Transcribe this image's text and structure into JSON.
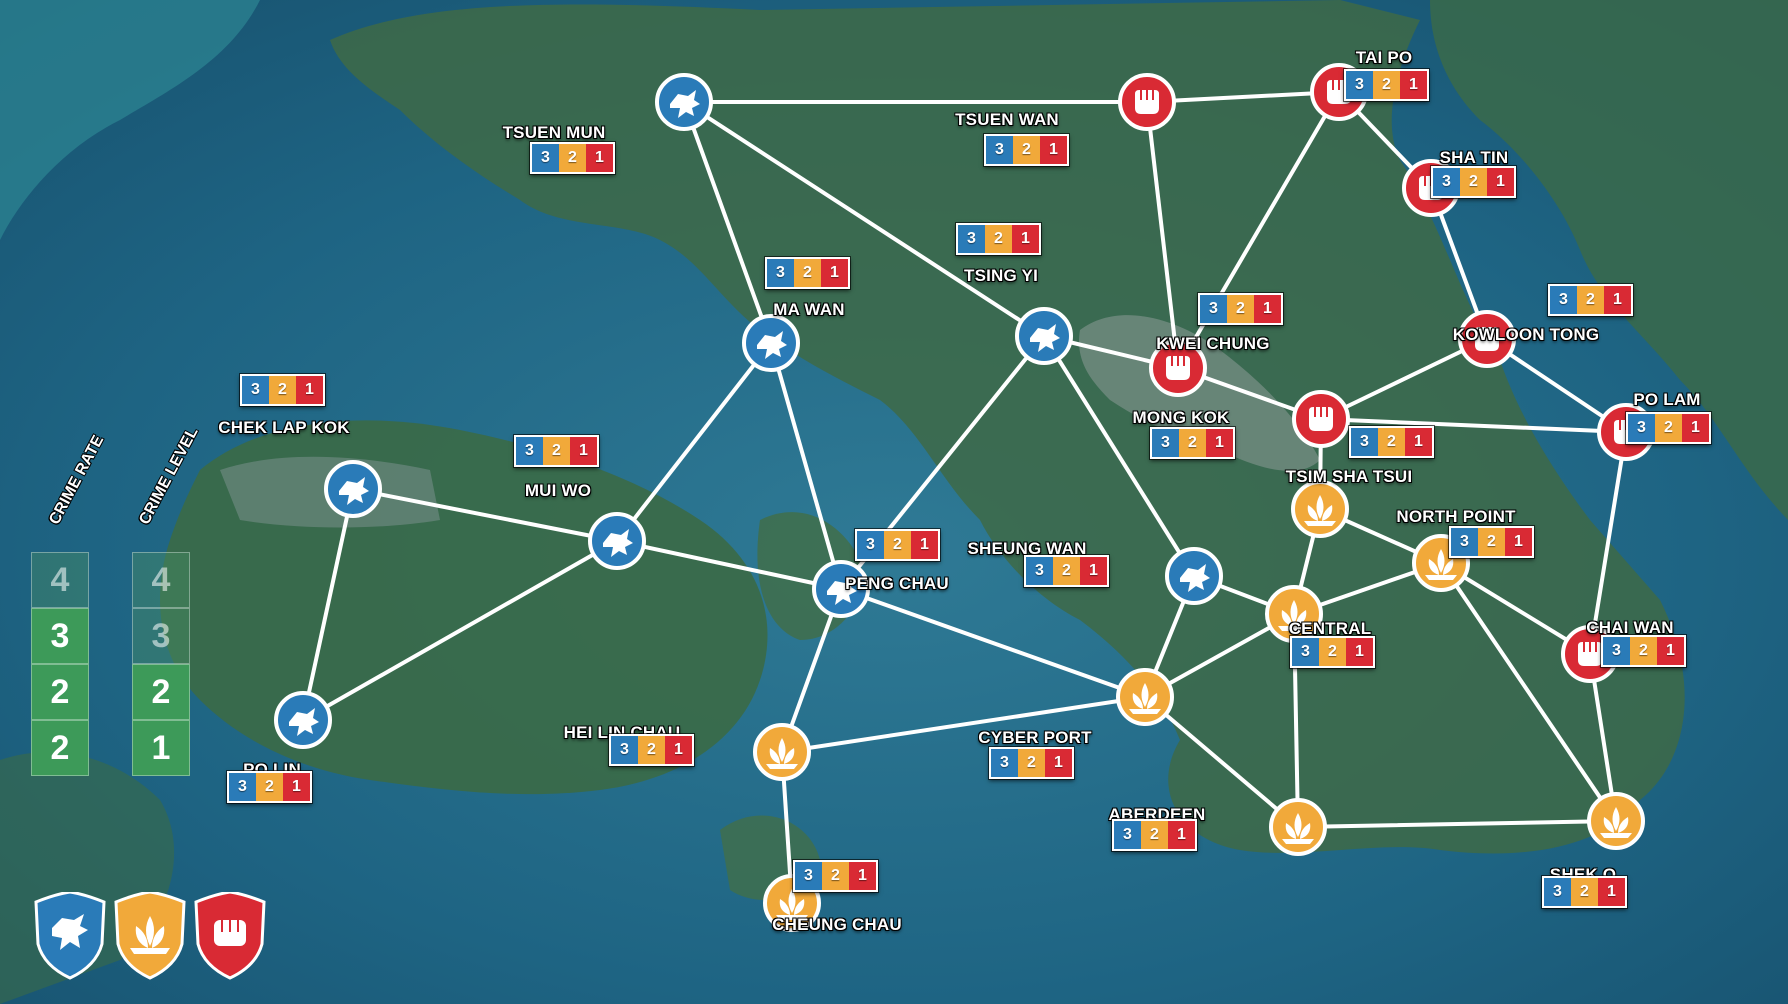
{
  "colors": {
    "dragon": "#2a7bb8",
    "lotus": "#f1a93a",
    "fist": "#d92a34",
    "road": "#ffffff",
    "track": "#3d9a59"
  },
  "tracks": {
    "crime_rate": {
      "label": "CRIME RATE",
      "values": [
        "4",
        "3",
        "2",
        "2"
      ],
      "active": [
        false,
        true,
        true,
        true
      ]
    },
    "crime_level": {
      "label": "CRIME LEVEL",
      "values": [
        "4",
        "3",
        "2",
        "1"
      ],
      "active": [
        false,
        false,
        true,
        true
      ]
    }
  },
  "districts": [
    {
      "id": "tsuen_mun",
      "name": "TSUEN MUN",
      "faction": "dragon",
      "score": [
        "3",
        "2",
        "1"
      ]
    },
    {
      "id": "tsuen_wan",
      "name": "TSUEN WAN",
      "faction": "fist",
      "score": [
        "3",
        "2",
        "1"
      ]
    },
    {
      "id": "tai_po",
      "name": "TAI PO",
      "faction": "fist",
      "score": [
        "3",
        "2",
        "1"
      ]
    },
    {
      "id": "sha_tin",
      "name": "SHA TIN",
      "faction": "fist",
      "score": [
        "3",
        "2",
        "1"
      ]
    },
    {
      "id": "tsing_yi",
      "name": "TSING YI",
      "faction": "dragon",
      "score": [
        "3",
        "2",
        "1"
      ]
    },
    {
      "id": "ma_wan",
      "name": "MA WAN",
      "faction": "dragon",
      "score": [
        "3",
        "2",
        "1"
      ]
    },
    {
      "id": "kwei_chung",
      "name": "KWEI CHUNG",
      "faction": "fist",
      "score": [
        "3",
        "2",
        "1"
      ]
    },
    {
      "id": "kowloon_tong",
      "name": "KOWLOON TONG",
      "faction": "fist",
      "score": [
        "3",
        "2",
        "1"
      ]
    },
    {
      "id": "chek_lap_kok",
      "name": "CHEK LAP KOK",
      "faction": "dragon",
      "score": [
        "3",
        "2",
        "1"
      ]
    },
    {
      "id": "mui_wo",
      "name": "MUI WO",
      "faction": "dragon",
      "score": [
        "3",
        "2",
        "1"
      ]
    },
    {
      "id": "mong_kok",
      "name": "MONG KOK",
      "faction": "fist",
      "score": [
        "3",
        "2",
        "1"
      ]
    },
    {
      "id": "po_lam",
      "name": "PO LAM",
      "faction": "fist",
      "score": [
        "3",
        "2",
        "1"
      ]
    },
    {
      "id": "tsim_sha_tsui",
      "name": "TSIM SHA TSUI",
      "faction": "lotus",
      "score": [
        "3",
        "2",
        "1"
      ]
    },
    {
      "id": "north_point",
      "name": "NORTH POINT",
      "faction": "lotus",
      "score": [
        "3",
        "2",
        "1"
      ]
    },
    {
      "id": "sheung_wan",
      "name": "SHEUNG WAN",
      "faction": "dragon",
      "score": [
        "3",
        "2",
        "1"
      ]
    },
    {
      "id": "peng_chau",
      "name": "PENG CHAU",
      "faction": "dragon",
      "score": [
        "3",
        "2",
        "1"
      ]
    },
    {
      "id": "central",
      "name": "CENTRAL",
      "faction": "lotus",
      "score": [
        "3",
        "2",
        "1"
      ]
    },
    {
      "id": "chai_wan",
      "name": "CHAI WAN",
      "faction": "fist",
      "score": [
        "3",
        "2",
        "1"
      ]
    },
    {
      "id": "po_lin",
      "name": "PO LIN",
      "faction": "dragon",
      "score": [
        "3",
        "2",
        "1"
      ]
    },
    {
      "id": "hei_lin_chau",
      "name": "HEI LIN CHAU",
      "faction": "lotus",
      "score": [
        "3",
        "2",
        "1"
      ]
    },
    {
      "id": "cyber_port",
      "name": "CYBER PORT",
      "faction": "lotus",
      "score": [
        "3",
        "2",
        "1"
      ]
    },
    {
      "id": "aberdeen",
      "name": "ABERDEEN",
      "faction": "lotus",
      "score": [
        "3",
        "2",
        "1"
      ]
    },
    {
      "id": "shek_o",
      "name": "SHEK O",
      "faction": "lotus",
      "score": [
        "3",
        "2",
        "1"
      ]
    },
    {
      "id": "cheung_chau",
      "name": "CHEUNG CHAU",
      "faction": "lotus",
      "score": [
        "3",
        "2",
        "1"
      ]
    }
  ],
  "connections": [
    [
      "tsuen_mun",
      "tsuen_wan"
    ],
    [
      "tsuen_wan",
      "tai_po"
    ],
    [
      "tsuen_mun",
      "ma_wan"
    ],
    [
      "tsuen_mun",
      "tsing_yi"
    ],
    [
      "tsuen_wan",
      "kwei_chung"
    ],
    [
      "tai_po",
      "sha_tin"
    ],
    [
      "tai_po",
      "kwei_chung"
    ],
    [
      "sha_tin",
      "kowloon_tong"
    ],
    [
      "ma_wan",
      "mui_wo"
    ],
    [
      "ma_wan",
      "peng_chau"
    ],
    [
      "tsing_yi",
      "kwei_chung"
    ],
    [
      "tsing_yi",
      "peng_chau"
    ],
    [
      "tsing_yi",
      "sheung_wan"
    ],
    [
      "kwei_chung",
      "mong_kok"
    ],
    [
      "kowloon_tong",
      "mong_kok"
    ],
    [
      "kowloon_tong",
      "po_lam"
    ],
    [
      "mong_kok",
      "po_lam"
    ],
    [
      "mong_kok",
      "tsim_sha_tsui"
    ],
    [
      "chek_lap_kok",
      "mui_wo"
    ],
    [
      "chek_lap_kok",
      "po_lin"
    ],
    [
      "mui_wo",
      "po_lin"
    ],
    [
      "mui_wo",
      "peng_chau"
    ],
    [
      "peng_chau",
      "hei_lin_chau"
    ],
    [
      "peng_chau",
      "cyber_port"
    ],
    [
      "tsim_sha_tsui",
      "central"
    ],
    [
      "tsim_sha_tsui",
      "north_point"
    ],
    [
      "central",
      "north_point"
    ],
    [
      "north_point",
      "chai_wan"
    ],
    [
      "north_point",
      "shek_o"
    ],
    [
      "po_lam",
      "chai_wan"
    ],
    [
      "chai_wan",
      "shek_o"
    ],
    [
      "sheung_wan",
      "central"
    ],
    [
      "sheung_wan",
      "cyber_port"
    ],
    [
      "central",
      "cyber_port"
    ],
    [
      "central",
      "aberdeen"
    ],
    [
      "cyber_port",
      "aberdeen"
    ],
    [
      "hei_lin_chau",
      "cyber_port"
    ],
    [
      "hei_lin_chau",
      "cheung_chau"
    ],
    [
      "aberdeen",
      "shek_o"
    ]
  ],
  "legend": [
    "dragon-icon",
    "lotus-icon",
    "fist-icon"
  ]
}
